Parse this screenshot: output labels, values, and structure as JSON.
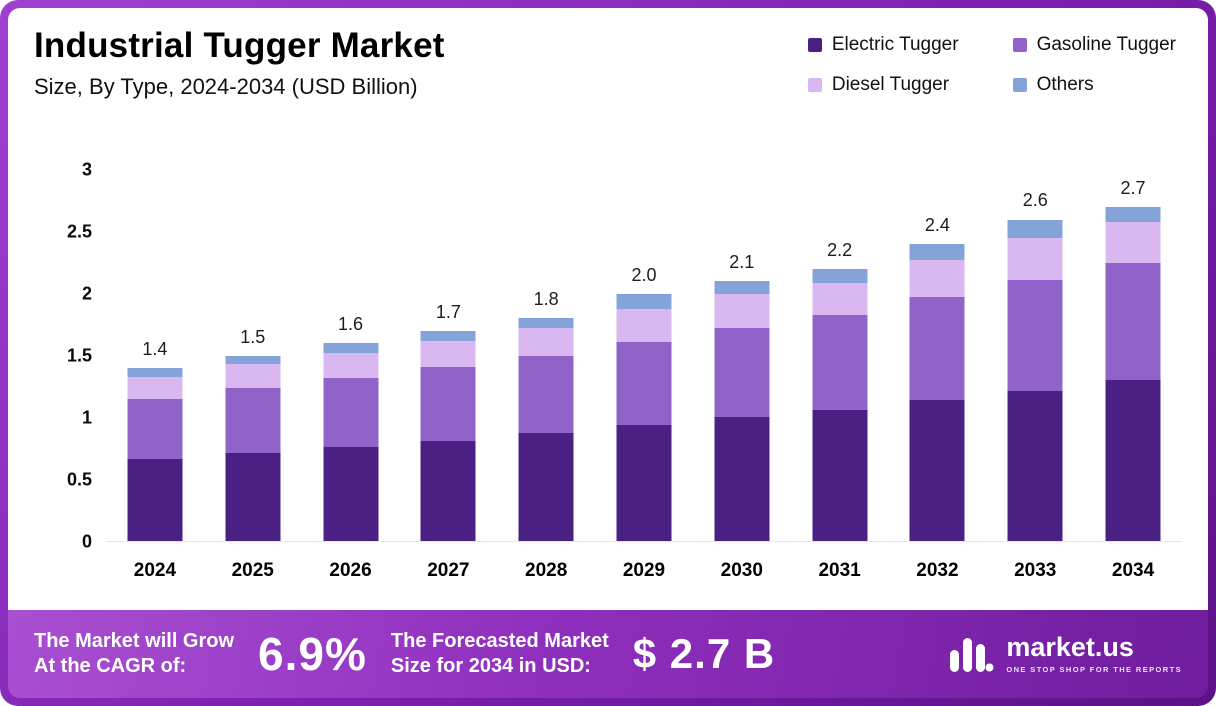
{
  "header": {
    "title": "Industrial Tugger Market",
    "subtitle": "Size, By Type, 2024-2034 (USD Billion)"
  },
  "chart_data": {
    "type": "bar",
    "stacked": true,
    "title": "Industrial Tugger Market Size, By Type, 2024-2034 (USD Billion)",
    "categories": [
      "2024",
      "2025",
      "2026",
      "2027",
      "2028",
      "2029",
      "2030",
      "2031",
      "2032",
      "2033",
      "2034"
    ],
    "series": [
      {
        "name": "Electric Tugger",
        "color": "#4a2083",
        "values": [
          0.66,
          0.71,
          0.76,
          0.81,
          0.87,
          0.94,
          1.0,
          1.06,
          1.14,
          1.21,
          1.3
        ]
      },
      {
        "name": "Gasoline Tugger",
        "color": "#9163c9",
        "values": [
          0.49,
          0.53,
          0.56,
          0.6,
          0.63,
          0.67,
          0.72,
          0.77,
          0.83,
          0.9,
          0.95
        ]
      },
      {
        "name": "Diesel Tugger",
        "color": "#d9b8f2",
        "values": [
          0.18,
          0.19,
          0.2,
          0.21,
          0.22,
          0.27,
          0.28,
          0.26,
          0.3,
          0.34,
          0.33
        ]
      },
      {
        "name": "Others",
        "color": "#84a3d8",
        "values": [
          0.07,
          0.07,
          0.08,
          0.08,
          0.08,
          0.12,
          0.1,
          0.11,
          0.13,
          0.15,
          0.12
        ]
      }
    ],
    "totals": [
      "1.4",
      "1.5",
      "1.6",
      "1.7",
      "1.8",
      "2.0",
      "2.1",
      "2.2",
      "2.4",
      "2.6",
      "2.7"
    ],
    "ylim": [
      0,
      3
    ],
    "yticks": [
      0,
      0.5,
      1,
      1.5,
      2,
      2.5,
      3
    ],
    "grid": false,
    "legend_position": "top-right",
    "xlabel": "",
    "ylabel": "USD Billion"
  },
  "footer": {
    "cagr_label_line1": "The Market will Grow",
    "cagr_label_line2": "At the CAGR of:",
    "cagr_value": "6.9%",
    "forecast_label_line1": "The Forecasted Market",
    "forecast_label_line2": "Size for 2034 in USD:",
    "forecast_value": "$ 2.7 B",
    "logo_name": "market.us",
    "logo_tagline": "ONE STOP SHOP FOR THE REPORTS"
  }
}
